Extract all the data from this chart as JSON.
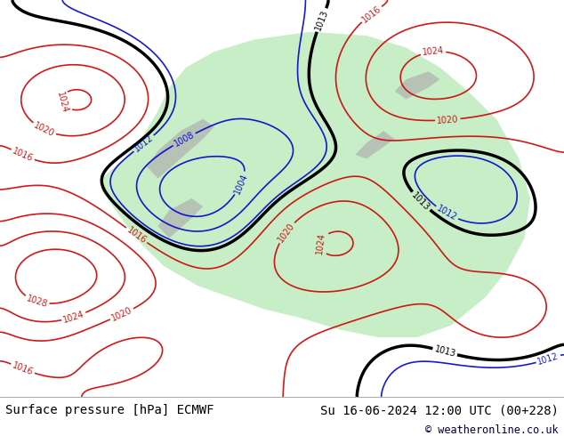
{
  "title_left": "Surface pressure [hPa] ECMWF",
  "title_right": "Su 16-06-2024 12:00 UTC (00+228)",
  "copyright": "© weatheronline.co.uk",
  "bg_color": "#d0e8f8",
  "land_color": "#c8eec8",
  "mountain_color": "#b0b0b0",
  "contour_color_low": "#0000cc",
  "contour_color_high": "#cc0000",
  "contour_color_black": "#000000",
  "footer_bg": "#ffffff",
  "footer_text_color": "#000000",
  "copyright_color": "#000040",
  "font_size_footer": 10,
  "fig_width": 6.34,
  "fig_height": 4.9
}
